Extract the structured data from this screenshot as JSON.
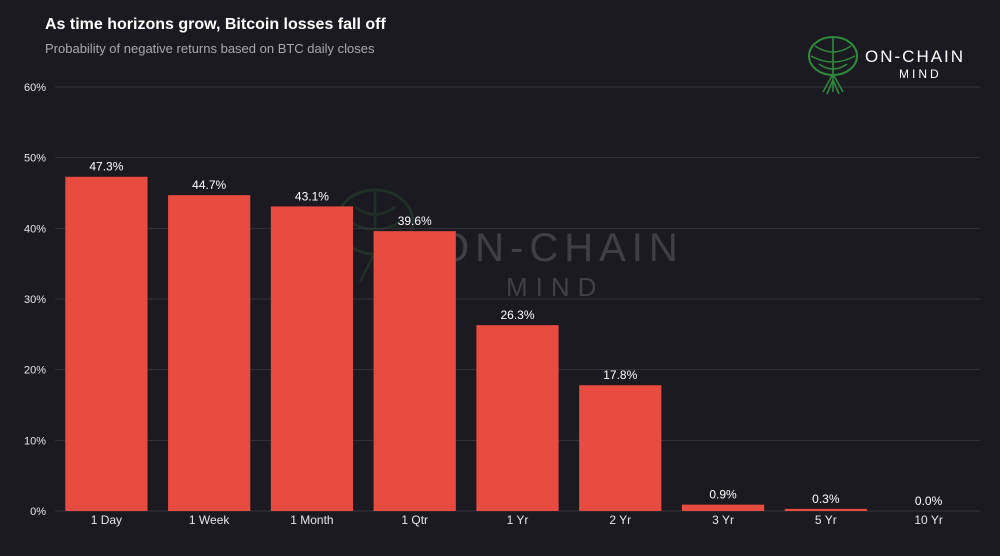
{
  "header": {
    "title": "As time horizons grow, Bitcoin losses fall off",
    "subtitle": "Probability of negative returns based on BTC daily closes"
  },
  "logo": {
    "line1": "ON-CHAIN",
    "line2": "MIND",
    "icon": "brain-tree-icon",
    "color": "#2e8a3e"
  },
  "watermark": {
    "line1": "ON-CHAIN",
    "line2": "MIND",
    "icon": "brain-tree-icon"
  },
  "colors": {
    "background": "#1b1a20",
    "bar": "#e84b3f",
    "grid": "#34333b"
  },
  "chart_data": {
    "type": "bar",
    "title": "As time horizons grow, Bitcoin losses fall off",
    "subtitle": "Probability of negative returns based on BTC daily closes",
    "categories": [
      "1 Day",
      "1 Week",
      "1 Month",
      "1 Qtr",
      "1 Yr",
      "2 Yr",
      "3 Yr",
      "5 Yr",
      "10 Yr"
    ],
    "values": [
      47.3,
      44.7,
      43.1,
      39.6,
      26.3,
      17.8,
      0.9,
      0.3,
      0.0
    ],
    "value_labels": [
      "47.3%",
      "44.7%",
      "43.1%",
      "39.6%",
      "26.3%",
      "17.8%",
      "0.9%",
      "0.3%",
      "0.0%"
    ],
    "yticks": [
      0,
      10,
      20,
      30,
      40,
      50,
      60
    ],
    "ytick_labels": [
      "0%",
      "10%",
      "20%",
      "30%",
      "40%",
      "50%",
      "60%"
    ],
    "ylim": [
      0,
      60
    ],
    "xlabel": "",
    "ylabel": "",
    "grid": true,
    "legend": "none"
  }
}
